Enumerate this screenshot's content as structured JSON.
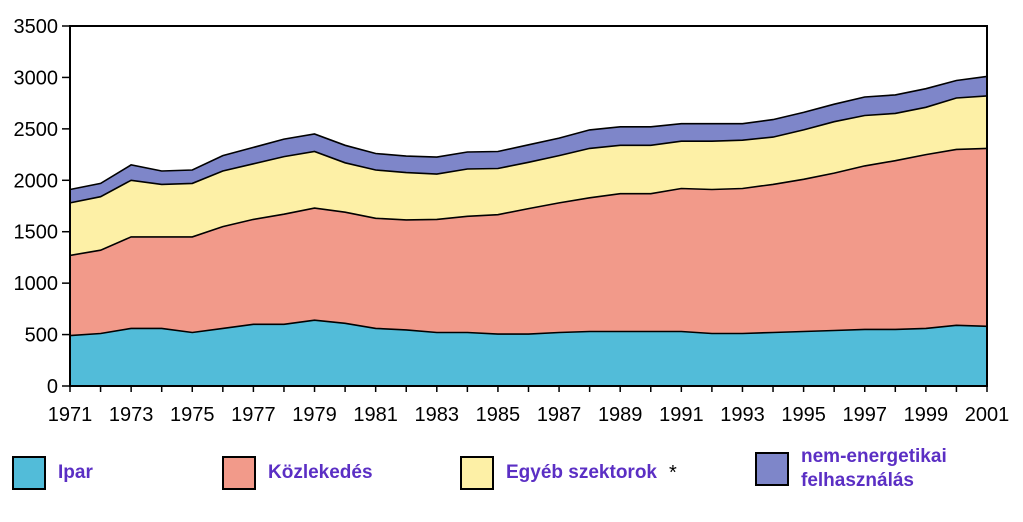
{
  "chart_data": {
    "type": "area",
    "stacked": true,
    "x": [
      1971,
      1972,
      1973,
      1974,
      1975,
      1976,
      1977,
      1978,
      1979,
      1980,
      1981,
      1982,
      1983,
      1984,
      1985,
      1986,
      1987,
      1988,
      1989,
      1990,
      1991,
      1992,
      1993,
      1994,
      1995,
      1996,
      1997,
      1998,
      1999,
      2000,
      2001
    ],
    "x_tick_labels": [
      "1971",
      "1973",
      "1975",
      "1977",
      "1979",
      "1981",
      "1983",
      "1985",
      "1987",
      "1989",
      "1991",
      "1993",
      "1995",
      "1997",
      "1999",
      "2001"
    ],
    "y_tick_labels": [
      "0",
      "500",
      "1000",
      "1500",
      "2000",
      "2500",
      "3000",
      "3500"
    ],
    "ylim": [
      0,
      3500
    ],
    "grid": false,
    "series": [
      {
        "name": "Ipar",
        "color": "#52bcd9",
        "values": [
          490,
          510,
          560,
          560,
          520,
          560,
          600,
          600,
          640,
          610,
          560,
          545,
          520,
          520,
          505,
          505,
          520,
          530,
          530,
          530,
          530,
          510,
          510,
          520,
          530,
          540,
          550,
          550,
          560,
          590,
          580
        ]
      },
      {
        "name": "Közlekedés",
        "color": "#f29a8a",
        "values": [
          780,
          810,
          890,
          890,
          930,
          990,
          1020,
          1070,
          1090,
          1080,
          1070,
          1070,
          1100,
          1130,
          1160,
          1220,
          1260,
          1300,
          1340,
          1340,
          1390,
          1400,
          1410,
          1440,
          1480,
          1530,
          1590,
          1640,
          1690,
          1710,
          1730
        ]
      },
      {
        "name": "Egyéb szektorok",
        "color": "#fdf0a6",
        "values": [
          510,
          520,
          550,
          510,
          520,
          540,
          540,
          560,
          550,
          480,
          470,
          460,
          440,
          460,
          450,
          450,
          460,
          480,
          470,
          470,
          460,
          470,
          470,
          460,
          480,
          500,
          490,
          460,
          460,
          500,
          510
        ]
      },
      {
        "name": "nem-energetikai felhasználás",
        "color": "#7e86c9",
        "values": [
          130,
          130,
          150,
          130,
          130,
          150,
          160,
          170,
          170,
          170,
          160,
          160,
          165,
          165,
          165,
          170,
          170,
          180,
          180,
          180,
          170,
          170,
          160,
          170,
          170,
          170,
          180,
          180,
          180,
          170,
          190
        ]
      }
    ]
  },
  "legend": {
    "ipar": "Ipar",
    "kozlekedes": "Közlekedés",
    "egyeb": "Egyéb szektorok",
    "egyeb_mark": "*",
    "nem_line1": "nem-energetikai",
    "nem_line2": "felhasználás"
  }
}
